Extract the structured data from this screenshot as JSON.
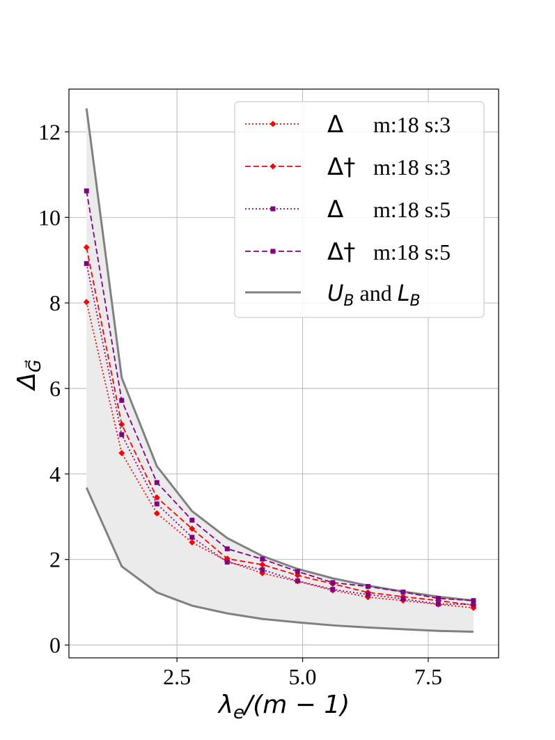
{
  "chart_data": {
    "type": "line",
    "title": "",
    "xlabel": "λ_e/(m − 1)",
    "xlabel_parts": {
      "lambda": "λ",
      "sub": "e",
      "rest": "/(m − 1)"
    },
    "ylabel": "Δ_G⃗",
    "ylabel_parts": {
      "delta": "Δ",
      "sub": "G⃗"
    },
    "xlim": [
      0.35,
      8.9
    ],
    "ylim": [
      -0.3,
      13.0
    ],
    "xticks": [
      2.5,
      5.0,
      7.5
    ],
    "xtick_labels": [
      "2.5",
      "5.0",
      "7.5"
    ],
    "yticks": [
      0,
      2,
      4,
      6,
      8,
      10,
      12
    ],
    "ytick_labels": [
      "0",
      "2",
      "4",
      "6",
      "8",
      "10",
      "12"
    ],
    "grid": true,
    "legend_position": "top-right",
    "x": [
      0.7,
      1.4,
      2.1,
      2.8,
      3.5,
      4.2,
      4.9,
      5.6,
      6.3,
      7.0,
      7.7,
      8.4
    ],
    "band": {
      "name": "U_B and L_B",
      "upper": [
        12.55,
        6.25,
        4.18,
        3.13,
        2.5,
        2.08,
        1.78,
        1.56,
        1.39,
        1.25,
        1.13,
        1.04
      ],
      "lower": [
        3.68,
        1.84,
        1.23,
        0.92,
        0.74,
        0.61,
        0.53,
        0.46,
        0.41,
        0.37,
        0.33,
        0.31
      ],
      "color": "#808080",
      "fill": "#ebebeb"
    },
    "series": [
      {
        "name": "Δ m:18 s:3",
        "symbol": "Δ",
        "text": "m:18 s:3",
        "color": "#ff0000",
        "style": "dotted",
        "marker": "diamond",
        "values": [
          8.02,
          4.49,
          3.08,
          2.4,
          1.96,
          1.68,
          1.49,
          1.28,
          1.12,
          1.04,
          0.95,
          0.87
        ]
      },
      {
        "name": "Δ† m:18 s:3",
        "symbol": "Δ†",
        "text": "m:18 s:3",
        "color": "#ff0000",
        "style": "dashed",
        "marker": "diamond",
        "values": [
          9.3,
          5.16,
          3.45,
          2.72,
          2.02,
          1.88,
          1.63,
          1.43,
          1.23,
          1.13,
          1.04,
          0.93
        ]
      },
      {
        "name": "Δ m:18 s:5",
        "symbol": "Δ",
        "text": "m:18 s:5",
        "color": "#800080",
        "style": "dotted",
        "marker": "square",
        "values": [
          8.92,
          4.92,
          3.3,
          2.52,
          1.94,
          1.76,
          1.5,
          1.3,
          1.18,
          1.08,
          0.96,
          0.95
        ]
      },
      {
        "name": "Δ† m:18 s:5",
        "symbol": "Δ†",
        "text": "m:18 s:5",
        "color": "#800080",
        "style": "dashed",
        "marker": "square",
        "values": [
          10.62,
          5.72,
          3.8,
          2.92,
          2.25,
          2.01,
          1.72,
          1.46,
          1.37,
          1.24,
          1.09,
          1.04
        ]
      }
    ],
    "legend_entries": [
      {
        "symbol": "Δ",
        "text": "m:18 s:3"
      },
      {
        "symbol": "Δ†",
        "text": "m:18 s:3"
      },
      {
        "symbol": "Δ",
        "text": "m:18 s:5"
      },
      {
        "symbol": "Δ†",
        "text": "m:18 s:5"
      },
      {
        "u": "U",
        "l": "L",
        "sub": "B",
        "mid": " and "
      }
    ]
  }
}
